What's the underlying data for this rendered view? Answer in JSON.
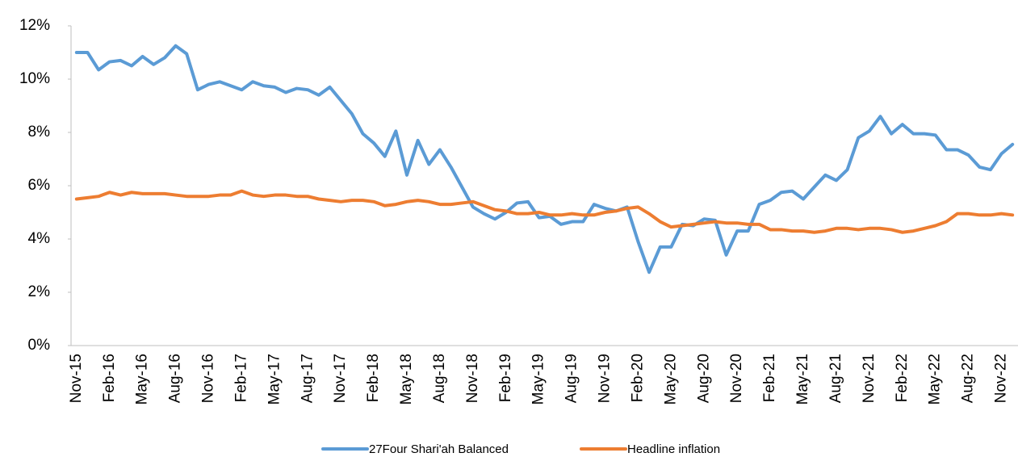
{
  "chart_data": {
    "type": "line",
    "categories": [
      "Nov-15",
      null,
      null,
      "Feb-16",
      null,
      null,
      "May-16",
      null,
      null,
      "Aug-16",
      null,
      null,
      "Nov-16",
      null,
      null,
      "Feb-17",
      null,
      null,
      "May-17",
      null,
      null,
      "Aug-17",
      null,
      null,
      "Nov-17",
      null,
      null,
      "Feb-18",
      null,
      null,
      "May-18",
      null,
      null,
      "Aug-18",
      null,
      null,
      "Nov-18",
      null,
      null,
      "Feb-19",
      null,
      null,
      "May-19",
      null,
      null,
      "Aug-19",
      null,
      null,
      "Nov-19",
      null,
      null,
      "Feb-20",
      null,
      null,
      "May-20",
      null,
      null,
      "Aug-20",
      null,
      null,
      "Nov-20",
      null,
      null,
      "Feb-21",
      null,
      null,
      "May-21",
      null,
      null,
      "Aug-21",
      null,
      null,
      "Nov-21",
      null,
      null,
      "Feb-22",
      null,
      null,
      "May-22",
      null,
      null,
      "Aug-22",
      null,
      null,
      "Nov-22",
      null
    ],
    "series": [
      {
        "name": "27Four Shari'ah Balanced",
        "color": "#5b9bd5",
        "values": [
          11.0,
          11.0,
          10.35,
          10.65,
          10.7,
          10.5,
          10.85,
          10.55,
          10.8,
          11.25,
          10.95,
          9.6,
          9.8,
          9.9,
          9.75,
          9.6,
          9.9,
          9.75,
          9.7,
          9.5,
          9.65,
          9.6,
          9.4,
          9.7,
          9.2,
          8.7,
          7.95,
          7.6,
          7.1,
          8.05,
          6.4,
          7.7,
          6.8,
          7.35,
          6.7,
          5.95,
          5.2,
          4.95,
          4.75,
          5.0,
          5.35,
          5.4,
          4.8,
          4.85,
          4.55,
          4.65,
          4.65,
          5.3,
          5.15,
          5.05,
          5.2,
          3.9,
          2.75,
          3.7,
          3.7,
          4.55,
          4.5,
          4.75,
          4.7,
          3.4,
          4.3,
          4.3,
          5.3,
          5.45,
          5.75,
          5.8,
          5.5,
          5.95,
          6.4,
          6.2,
          6.6,
          7.8,
          8.05,
          8.6,
          7.95,
          8.3,
          7.95,
          7.95,
          7.9,
          7.35,
          7.35,
          7.15,
          6.7,
          6.6,
          7.2,
          7.55
        ]
      },
      {
        "name": "Headline inflation",
        "color": "#ed7d31",
        "values": [
          5.5,
          5.55,
          5.6,
          5.75,
          5.65,
          5.75,
          5.7,
          5.7,
          5.7,
          5.65,
          5.6,
          5.6,
          5.6,
          5.65,
          5.65,
          5.8,
          5.65,
          5.6,
          5.65,
          5.65,
          5.6,
          5.6,
          5.5,
          5.45,
          5.4,
          5.45,
          5.45,
          5.4,
          5.25,
          5.3,
          5.4,
          5.45,
          5.4,
          5.3,
          5.3,
          5.35,
          5.4,
          5.25,
          5.1,
          5.05,
          4.95,
          4.95,
          5.0,
          4.9,
          4.9,
          4.95,
          4.9,
          4.9,
          5.0,
          5.05,
          5.15,
          5.2,
          4.95,
          4.65,
          4.45,
          4.5,
          4.55,
          4.6,
          4.65,
          4.6,
          4.6,
          4.55,
          4.55,
          4.35,
          4.35,
          4.3,
          4.3,
          4.25,
          4.3,
          4.4,
          4.4,
          4.35,
          4.4,
          4.4,
          4.35,
          4.25,
          4.3,
          4.4,
          4.5,
          4.65,
          4.95,
          4.95,
          4.9,
          4.9,
          4.95,
          4.9
        ]
      }
    ],
    "ylim": [
      0,
      12
    ],
    "yticks": [
      {
        "value": 0,
        "label": "0%"
      },
      {
        "value": 2,
        "label": "2%"
      },
      {
        "value": 4,
        "label": "4%"
      },
      {
        "value": 6,
        "label": "6%"
      },
      {
        "value": 8,
        "label": "8%"
      },
      {
        "value": 10,
        "label": "10%"
      },
      {
        "value": 12,
        "label": "12%"
      }
    ],
    "grid": false,
    "legend": "bottom"
  }
}
